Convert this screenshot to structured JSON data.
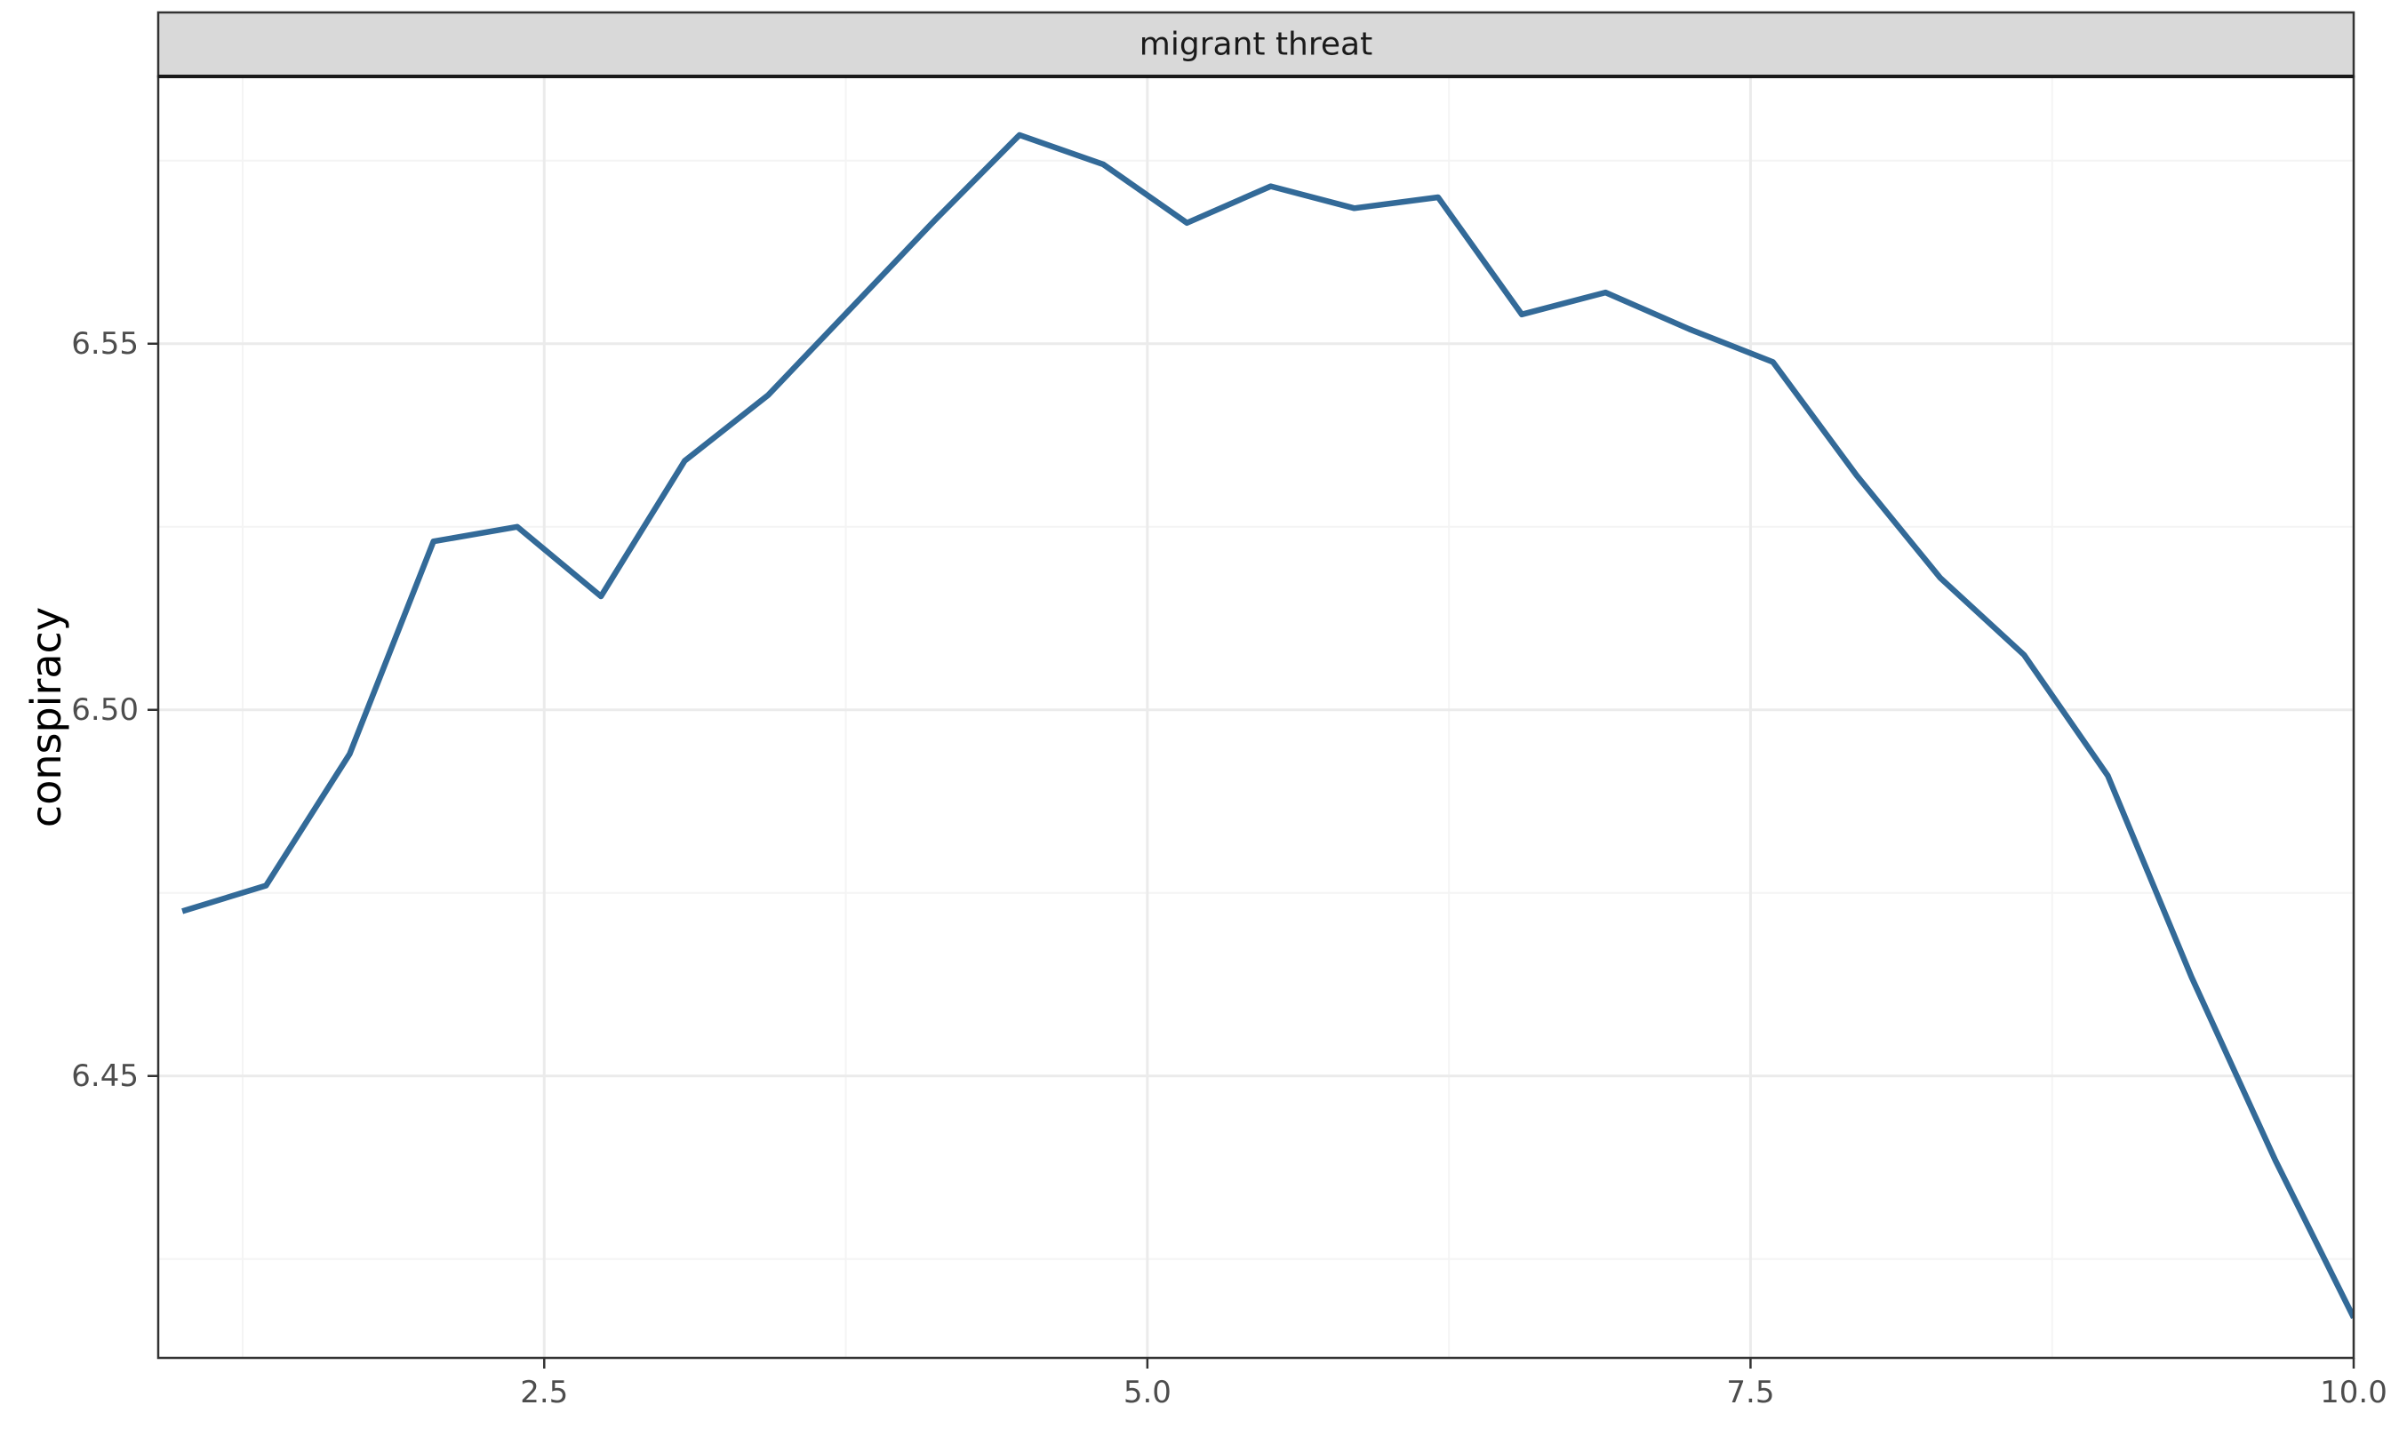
{
  "chart_data": {
    "type": "line",
    "facet_label": "migrant threat",
    "xlabel": "",
    "ylabel": "conspiracy",
    "xlim": [
      0.9,
      10.0
    ],
    "ylim": [
      6.4115,
      6.5865
    ],
    "x_ticks": [
      2.5,
      5.0,
      7.5,
      10.0
    ],
    "x_tick_labels": [
      "2.5",
      "5.0",
      "7.5",
      "10.0"
    ],
    "x_minor_ticks": [
      1.25,
      3.75,
      6.25,
      8.75
    ],
    "y_ticks": [
      6.45,
      6.5,
      6.55
    ],
    "y_tick_labels": [
      "6.45",
      "6.50",
      "6.55"
    ],
    "y_minor_ticks": [
      6.425,
      6.475,
      6.525,
      6.575
    ],
    "grid": true,
    "legend": "none",
    "series": [
      {
        "color": "#336a98",
        "x": [
          1.0,
          1.347,
          1.694,
          2.041,
          2.388,
          2.735,
          3.082,
          3.429,
          3.776,
          4.123,
          4.47,
          4.817,
          5.164,
          5.511,
          5.858,
          6.205,
          6.552,
          6.899,
          7.246,
          7.593,
          7.94,
          8.287,
          8.634,
          8.981,
          9.328,
          9.675,
          10.0
        ],
        "y": [
          6.4725,
          6.476,
          6.494,
          6.523,
          6.525,
          6.5155,
          6.534,
          6.543,
          6.555,
          6.567,
          6.5785,
          6.5745,
          6.5665,
          6.5715,
          6.5685,
          6.57,
          6.554,
          6.557,
          6.552,
          6.5475,
          6.532,
          6.518,
          6.5075,
          6.491,
          6.4635,
          6.4385,
          6.417
        ]
      }
    ],
    "colors": {
      "panel_border": "#333333",
      "strip_fill": "#d9d9d9",
      "grid_major": "#ebebeb",
      "grid_minor": "#f4f4f4"
    }
  }
}
